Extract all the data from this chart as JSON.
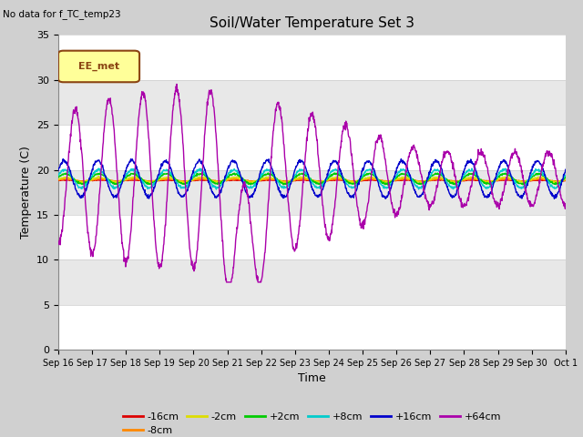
{
  "title": "Soil/Water Temperature Set 3",
  "top_left_text": "No data for f_TC_temp23",
  "xlabel": "Time",
  "ylabel": "Temperature (C)",
  "ylim": [
    0,
    35
  ],
  "yticks": [
    0,
    5,
    10,
    15,
    20,
    25,
    30,
    35
  ],
  "fig_facecolor": "#d0d0d0",
  "plot_bg_color": "#e8e8e8",
  "band_color": "#f0f0f0",
  "legend_box_label": "EE_met",
  "legend_box_color": "#ffff99",
  "legend_box_border": "#8B4513",
  "series_colors": {
    "-16cm": "#dd0000",
    "-8cm": "#ff8800",
    "-2cm": "#dddd00",
    "+2cm": "#00cc00",
    "+8cm": "#00cccc",
    "+16cm": "#0000cc",
    "+64cm": "#aa00aa"
  },
  "xtick_labels": [
    "Sep 16",
    "Sep 17",
    "Sep 18",
    "Sep 19",
    "Sep 20",
    "Sep 21",
    "Sep 22",
    "Sep 23",
    "Sep 24",
    "Sep 25",
    "Sep 26",
    "Sep 27",
    "Sep 28",
    "Sep 29",
    "Sep 30",
    "Oct 1"
  ]
}
